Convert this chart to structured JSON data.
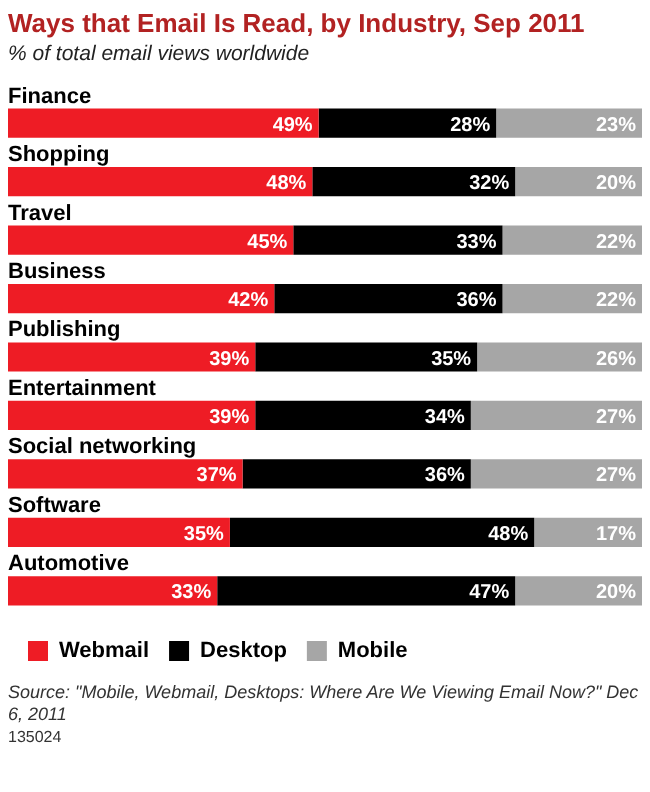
{
  "chart_data": {
    "type": "bar",
    "title": "Ways that Email Is Read, by Industry, Sep 2011",
    "subtitle": "% of total email views worldwide",
    "categories": [
      "Finance",
      "Shopping",
      "Travel",
      "Business",
      "Publishing",
      "Entertainment",
      "Social networking",
      "Software",
      "Automotive"
    ],
    "orientation": "horizontal",
    "stacked": true,
    "legend": "bottom left",
    "series": [
      {
        "name": "Webmail",
        "color": "#ee1c25",
        "values": [
          49,
          48,
          45,
          42,
          39,
          39,
          37,
          35,
          33
        ],
        "value_labels": [
          "49%",
          "48%",
          "45%",
          "42%",
          "39%",
          "39%",
          "37%",
          "35%",
          "33%"
        ]
      },
      {
        "name": "Desktop",
        "color": "#000000",
        "values": [
          28,
          32,
          33,
          36,
          35,
          34,
          36,
          48,
          47
        ],
        "value_labels": [
          "28%",
          "32%",
          "33%",
          "36%",
          "35%",
          "34%",
          "36%",
          "48%",
          "47%"
        ]
      },
      {
        "name": "Mobile",
        "color": "#a6a6a6",
        "values": [
          23,
          20,
          22,
          22,
          26,
          27,
          27,
          17,
          20
        ],
        "value_labels": [
          "23%",
          "20%",
          "22%",
          "22%",
          "26%",
          "27%",
          "27%",
          "17%",
          "20%"
        ]
      }
    ],
    "annotations": [
      "Source: \"Mobile, Webmail, Desktops: Where Are We Viewing Email Now?\" Dec 6, 2011",
      "135024"
    ]
  }
}
